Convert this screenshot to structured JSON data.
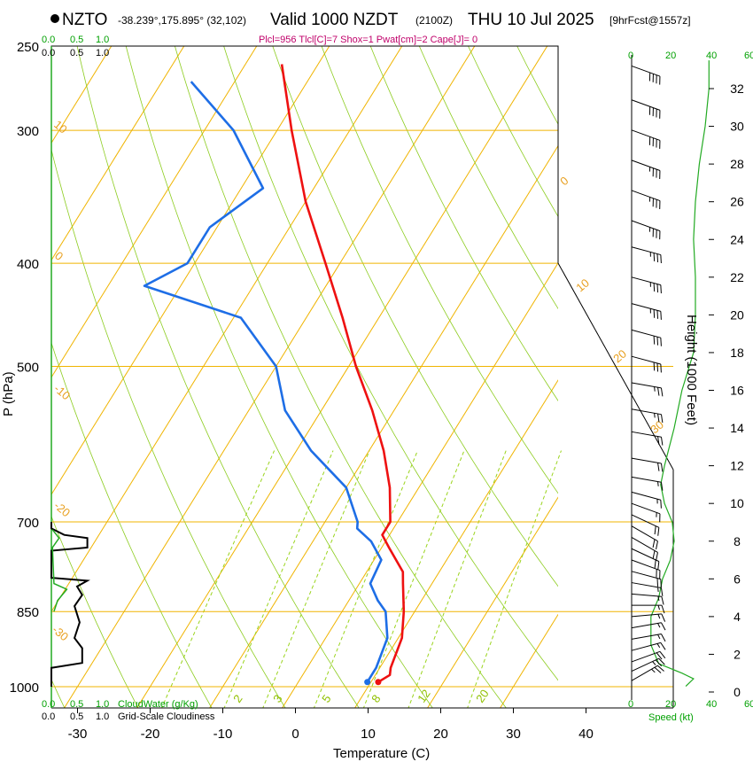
{
  "header": {
    "station": "NZTO",
    "coords": "-38.239°,175.895° (32,102)",
    "valid": "Valid 1000 NZDT",
    "utc": "(2100Z)",
    "date": "THU 10 Jul 2025",
    "forecast": "[9hrFcst@1557z]",
    "params": "Plcl=956 Tlcl[C]=7 Shox=1 Pwat[cm]=2 Cape[J]= 0"
  },
  "colors": {
    "temperature": "#ee1111",
    "dewpoint": "#1e6ee6",
    "isotherm": "#f0b400",
    "dry_adiabat": "#8ccc1e",
    "mixing_ratio": "#9ad41c",
    "cloud": "#000000",
    "cloudwater": "#22aa22",
    "wind": "#000000",
    "speed": "#22aa22"
  },
  "chart_data": {
    "type": "line",
    "title": "Skew-T Log-P Sounding NZTO",
    "xlabel": "Temperature (C)",
    "ylabel": "P (hPa)",
    "y2label": "Height (1000 Feet)",
    "xlim": [
      -33,
      47
    ],
    "ylim": [
      1000,
      250
    ],
    "x_ticks": [
      "-30",
      "-20",
      "-10",
      "0",
      "10",
      "20",
      "30",
      "40"
    ],
    "pressure_ticks": [
      {
        "p": 250,
        "label": "250"
      },
      {
        "p": 300,
        "label": "300"
      },
      {
        "p": 400,
        "label": "400"
      },
      {
        "p": 500,
        "label": "500"
      },
      {
        "p": 700,
        "label": "700"
      },
      {
        "p": 850,
        "label": "850"
      },
      {
        "p": 1000,
        "label": "1000"
      }
    ],
    "height_ticks": [
      "0",
      "2",
      "4",
      "6",
      "8",
      "10",
      "12",
      "14",
      "16",
      "18",
      "20",
      "22",
      "24",
      "26",
      "28",
      "30",
      "32"
    ],
    "series": [
      {
        "name": "Temperature",
        "points": [
          {
            "p": 990,
            "t": 11
          },
          {
            "p": 975,
            "t": 12
          },
          {
            "p": 960,
            "t": 11.5
          },
          {
            "p": 900,
            "t": 10.5
          },
          {
            "p": 850,
            "t": 8.5
          },
          {
            "p": 800,
            "t": 6
          },
          {
            "p": 780,
            "t": 5
          },
          {
            "p": 740,
            "t": 1
          },
          {
            "p": 720,
            "t": -1
          },
          {
            "p": 700,
            "t": -1
          },
          {
            "p": 650,
            "t": -4
          },
          {
            "p": 600,
            "t": -8
          },
          {
            "p": 550,
            "t": -13
          },
          {
            "p": 500,
            "t": -19
          },
          {
            "p": 450,
            "t": -25
          },
          {
            "p": 400,
            "t": -32
          },
          {
            "p": 350,
            "t": -40
          },
          {
            "p": 300,
            "t": -48
          },
          {
            "p": 260,
            "t": -55
          }
        ]
      },
      {
        "name": "Dewpoint",
        "points": [
          {
            "p": 990,
            "t": 9.5
          },
          {
            "p": 960,
            "t": 9.5
          },
          {
            "p": 900,
            "t": 8.5
          },
          {
            "p": 850,
            "t": 6
          },
          {
            "p": 830,
            "t": 4
          },
          {
            "p": 800,
            "t": 1.5
          },
          {
            "p": 760,
            "t": 1
          },
          {
            "p": 730,
            "t": -2
          },
          {
            "p": 710,
            "t": -5
          },
          {
            "p": 700,
            "t": -5.5
          },
          {
            "p": 650,
            "t": -10
          },
          {
            "p": 600,
            "t": -18
          },
          {
            "p": 550,
            "t": -25
          },
          {
            "p": 500,
            "t": -30
          },
          {
            "p": 450,
            "t": -39
          },
          {
            "p": 420,
            "t": -55
          },
          {
            "p": 400,
            "t": -51
          },
          {
            "p": 370,
            "t": -51
          },
          {
            "p": 340,
            "t": -47
          },
          {
            "p": 300,
            "t": -56
          },
          {
            "p": 270,
            "t": -66
          }
        ]
      }
    ],
    "mixing_ratio_labels": [
      "2",
      "3",
      "5",
      "8",
      "12",
      "20"
    ],
    "isotherm_labels": [
      "0",
      "10",
      "20",
      "30",
      "-10",
      "-20",
      "-30",
      "10",
      "0",
      "-20",
      "-30"
    ],
    "cloud_scale": {
      "top_values": [
        "0.0",
        "0.5",
        "1.0"
      ],
      "bottom_values": [
        "0.0",
        "0.5",
        "1.0"
      ],
      "cloudwater_label": "CloudWater (g/Kg)",
      "cloudiness_label": "Grid-Scale Cloudiness",
      "cloudiness_profile": [
        {
          "p": 1000,
          "v": 0
        },
        {
          "p": 960,
          "v": 0
        },
        {
          "p": 950,
          "v": 0.6
        },
        {
          "p": 920,
          "v": 0.6
        },
        {
          "p": 900,
          "v": 0.45
        },
        {
          "p": 870,
          "v": 0.55
        },
        {
          "p": 840,
          "v": 0.45
        },
        {
          "p": 820,
          "v": 0.6
        },
        {
          "p": 805,
          "v": 0.5
        },
        {
          "p": 795,
          "v": 0.7
        },
        {
          "p": 790,
          "v": 0
        },
        {
          "p": 745,
          "v": 0
        },
        {
          "p": 740,
          "v": 0.7
        },
        {
          "p": 725,
          "v": 0.7
        },
        {
          "p": 720,
          "v": 0.25
        },
        {
          "p": 710,
          "v": 0
        },
        {
          "p": 700,
          "v": 0
        }
      ],
      "cloudwater_profile": [
        {
          "p": 850,
          "v": 0.05
        },
        {
          "p": 830,
          "v": 0.12
        },
        {
          "p": 810,
          "v": 0.3
        },
        {
          "p": 800,
          "v": 0.05
        },
        {
          "p": 740,
          "v": 0.02
        },
        {
          "p": 725,
          "v": 0.15
        },
        {
          "p": 712,
          "v": 0.02
        }
      ]
    },
    "wind_speed_scale": {
      "top_values": [
        "0",
        "20",
        "40",
        "60"
      ],
      "bottom_values": [
        "0",
        "20",
        "40",
        "60"
      ],
      "label": "Speed (kt)"
    },
    "wind_speed_profile": [
      {
        "h": 0.3,
        "s": 28
      },
      {
        "h": 0.7,
        "s": 32
      },
      {
        "h": 1,
        "s": 26
      },
      {
        "h": 1.5,
        "s": 14
      },
      {
        "h": 2.5,
        "s": 10
      },
      {
        "h": 4,
        "s": 10
      },
      {
        "h": 5,
        "s": 14
      },
      {
        "h": 6,
        "s": 16
      },
      {
        "h": 7,
        "s": 20
      },
      {
        "h": 8,
        "s": 22
      },
      {
        "h": 9,
        "s": 21
      },
      {
        "h": 10,
        "s": 17
      },
      {
        "h": 11,
        "s": 15
      },
      {
        "h": 12,
        "s": 17
      },
      {
        "h": 14,
        "s": 22
      },
      {
        "h": 16,
        "s": 26
      },
      {
        "h": 18,
        "s": 32
      },
      {
        "h": 20,
        "s": 33
      },
      {
        "h": 22,
        "s": 33
      },
      {
        "h": 24,
        "s": 32
      },
      {
        "h": 26,
        "s": 33
      },
      {
        "h": 28,
        "s": 35
      },
      {
        "h": 30,
        "s": 38
      },
      {
        "h": 32,
        "s": 40
      },
      {
        "h": 33.5,
        "s": 40
      }
    ],
    "wind_barbs": [
      {
        "h": 0.6,
        "dir": 240,
        "kt": 25
      },
      {
        "h": 1.1,
        "dir": 245,
        "kt": 25
      },
      {
        "h": 1.6,
        "dir": 250,
        "kt": 20
      },
      {
        "h": 2.2,
        "dir": 255,
        "kt": 15
      },
      {
        "h": 2.8,
        "dir": 260,
        "kt": 15
      },
      {
        "h": 3.4,
        "dir": 260,
        "kt": 15
      },
      {
        "h": 4.0,
        "dir": 265,
        "kt": 15
      },
      {
        "h": 4.6,
        "dir": 270,
        "kt": 15
      },
      {
        "h": 5.2,
        "dir": 275,
        "kt": 15
      },
      {
        "h": 5.8,
        "dir": 280,
        "kt": 15
      },
      {
        "h": 6.4,
        "dir": 285,
        "kt": 20
      },
      {
        "h": 7.0,
        "dir": 290,
        "kt": 20
      },
      {
        "h": 7.6,
        "dir": 295,
        "kt": 20
      },
      {
        "h": 8.2,
        "dir": 300,
        "kt": 20
      },
      {
        "h": 8.8,
        "dir": 300,
        "kt": 20
      },
      {
        "h": 9.4,
        "dir": 295,
        "kt": 20
      },
      {
        "h": 10.0,
        "dir": 290,
        "kt": 15
      },
      {
        "h": 10.6,
        "dir": 285,
        "kt": 15
      },
      {
        "h": 11.4,
        "dir": 280,
        "kt": 15
      },
      {
        "h": 12.4,
        "dir": 280,
        "kt": 20
      },
      {
        "h": 13.8,
        "dir": 280,
        "kt": 20
      },
      {
        "h": 15.0,
        "dir": 280,
        "kt": 25
      },
      {
        "h": 16.4,
        "dir": 280,
        "kt": 25
      },
      {
        "h": 17.8,
        "dir": 285,
        "kt": 30
      },
      {
        "h": 19.2,
        "dir": 285,
        "kt": 30
      },
      {
        "h": 20.6,
        "dir": 285,
        "kt": 35
      },
      {
        "h": 22.0,
        "dir": 285,
        "kt": 35
      },
      {
        "h": 23.6,
        "dir": 285,
        "kt": 35
      },
      {
        "h": 25.0,
        "dir": 290,
        "kt": 35
      },
      {
        "h": 26.6,
        "dir": 290,
        "kt": 35
      },
      {
        "h": 28.2,
        "dir": 290,
        "kt": 35
      },
      {
        "h": 29.8,
        "dir": 290,
        "kt": 40
      },
      {
        "h": 31.4,
        "dir": 290,
        "kt": 40
      },
      {
        "h": 33.2,
        "dir": 290,
        "kt": 40
      }
    ]
  }
}
